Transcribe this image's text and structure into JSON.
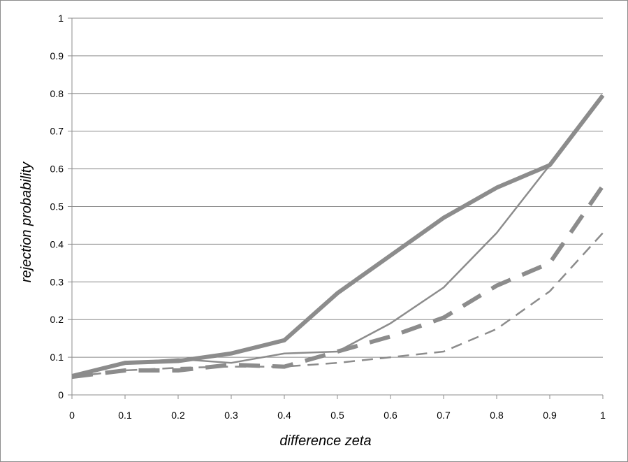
{
  "chart_data": {
    "type": "line",
    "title": "",
    "xlabel": "difference zeta",
    "ylabel": "rejection probability",
    "xlim": [
      0,
      1
    ],
    "ylim": [
      0,
      1
    ],
    "grid": true,
    "legend": "none",
    "x": [
      0,
      0.1,
      0.2,
      0.3,
      0.4,
      0.5,
      0.6,
      0.7,
      0.8,
      0.9,
      1
    ],
    "x_tick_labels": [
      "0",
      "0.1",
      "0.2",
      "0.3",
      "0.4",
      "0.5",
      "0.6",
      "0.7",
      "0.8",
      "0.9",
      "1"
    ],
    "y_tick_labels": [
      "0",
      "0.1",
      "0.2",
      "0.3",
      "0.4",
      "0.5",
      "0.6",
      "0.7",
      "0.8",
      "0.9",
      "1"
    ],
    "series": [
      {
        "style": "thick-solid",
        "color": "#8c8c8c",
        "values": [
          0.05,
          0.085,
          0.09,
          0.11,
          0.145,
          0.27,
          0.37,
          0.47,
          0.55,
          0.61,
          0.795
        ]
      },
      {
        "style": "thin-solid",
        "color": "#8c8c8c",
        "values": [
          0.05,
          0.085,
          0.095,
          0.085,
          0.11,
          0.115,
          0.19,
          0.285,
          0.43,
          0.61,
          0.795
        ]
      },
      {
        "style": "thick-dashed",
        "color": "#8c8c8c",
        "values": [
          0.048,
          0.065,
          0.065,
          0.08,
          0.075,
          0.115,
          0.155,
          0.205,
          0.29,
          0.35,
          0.555
        ]
      },
      {
        "style": "thin-dashed",
        "color": "#8c8c8c",
        "values": [
          0.048,
          0.065,
          0.072,
          0.075,
          0.075,
          0.085,
          0.1,
          0.115,
          0.175,
          0.275,
          0.43
        ]
      }
    ]
  }
}
